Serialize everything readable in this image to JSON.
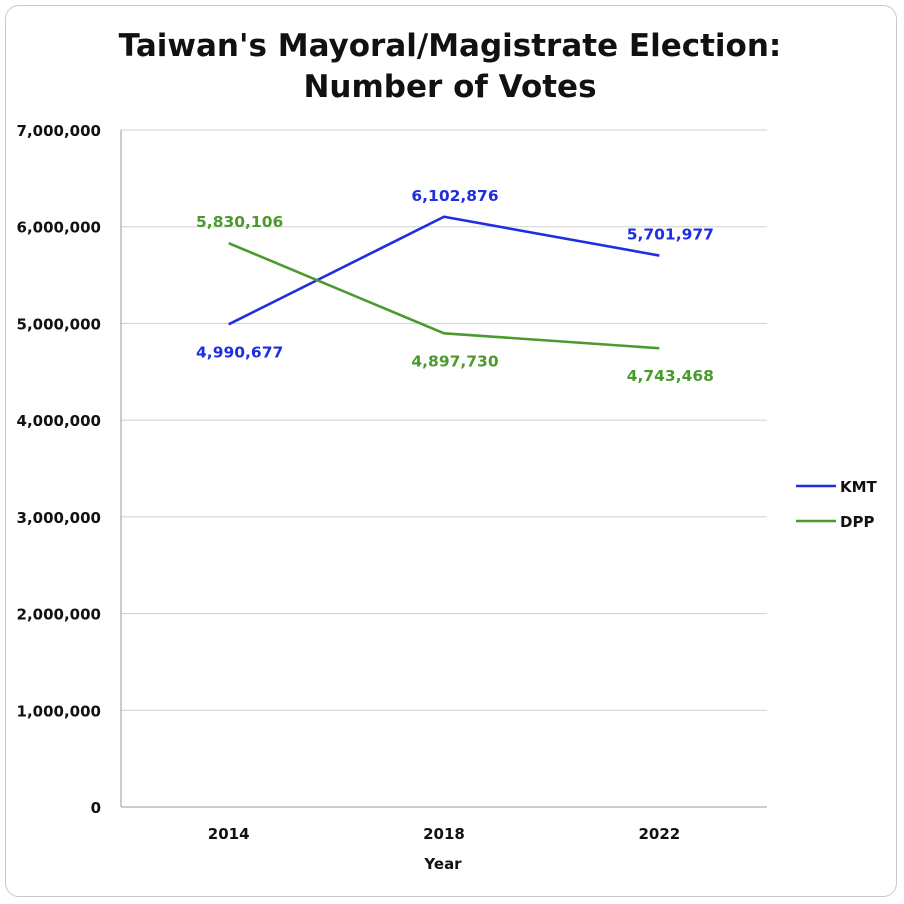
{
  "chart_data": {
    "type": "line",
    "title_lines": [
      "Taiwan's Mayoral/Magistrate Election:",
      "Number of Votes"
    ],
    "xlabel": "Year",
    "ylabel": "",
    "categories": [
      "2014",
      "2018",
      "2022"
    ],
    "ylim": [
      0,
      7000000
    ],
    "yticks": [
      0,
      1000000,
      2000000,
      3000000,
      4000000,
      5000000,
      6000000,
      7000000
    ],
    "ytick_labels": [
      "0",
      "1,000,000",
      "2,000,000",
      "3,000,000",
      "4,000,000",
      "5,000,000",
      "6,000,000",
      "7,000,000"
    ],
    "grid": true,
    "legend_position": "right",
    "series": [
      {
        "name": "KMT",
        "color": "#1f2fe0",
        "values": [
          4990677,
          6102876,
          5701977
        ],
        "labels": [
          "4,990,677",
          "6,102,876",
          "5,701,977"
        ],
        "label_side": [
          "below",
          "above",
          "above"
        ]
      },
      {
        "name": "DPP",
        "color": "#4a9a2e",
        "values": [
          5830106,
          4897730,
          4743468
        ],
        "labels": [
          "5,830,106",
          "4,897,730",
          "4,743,468"
        ],
        "label_side": [
          "above",
          "below",
          "below"
        ]
      }
    ]
  }
}
